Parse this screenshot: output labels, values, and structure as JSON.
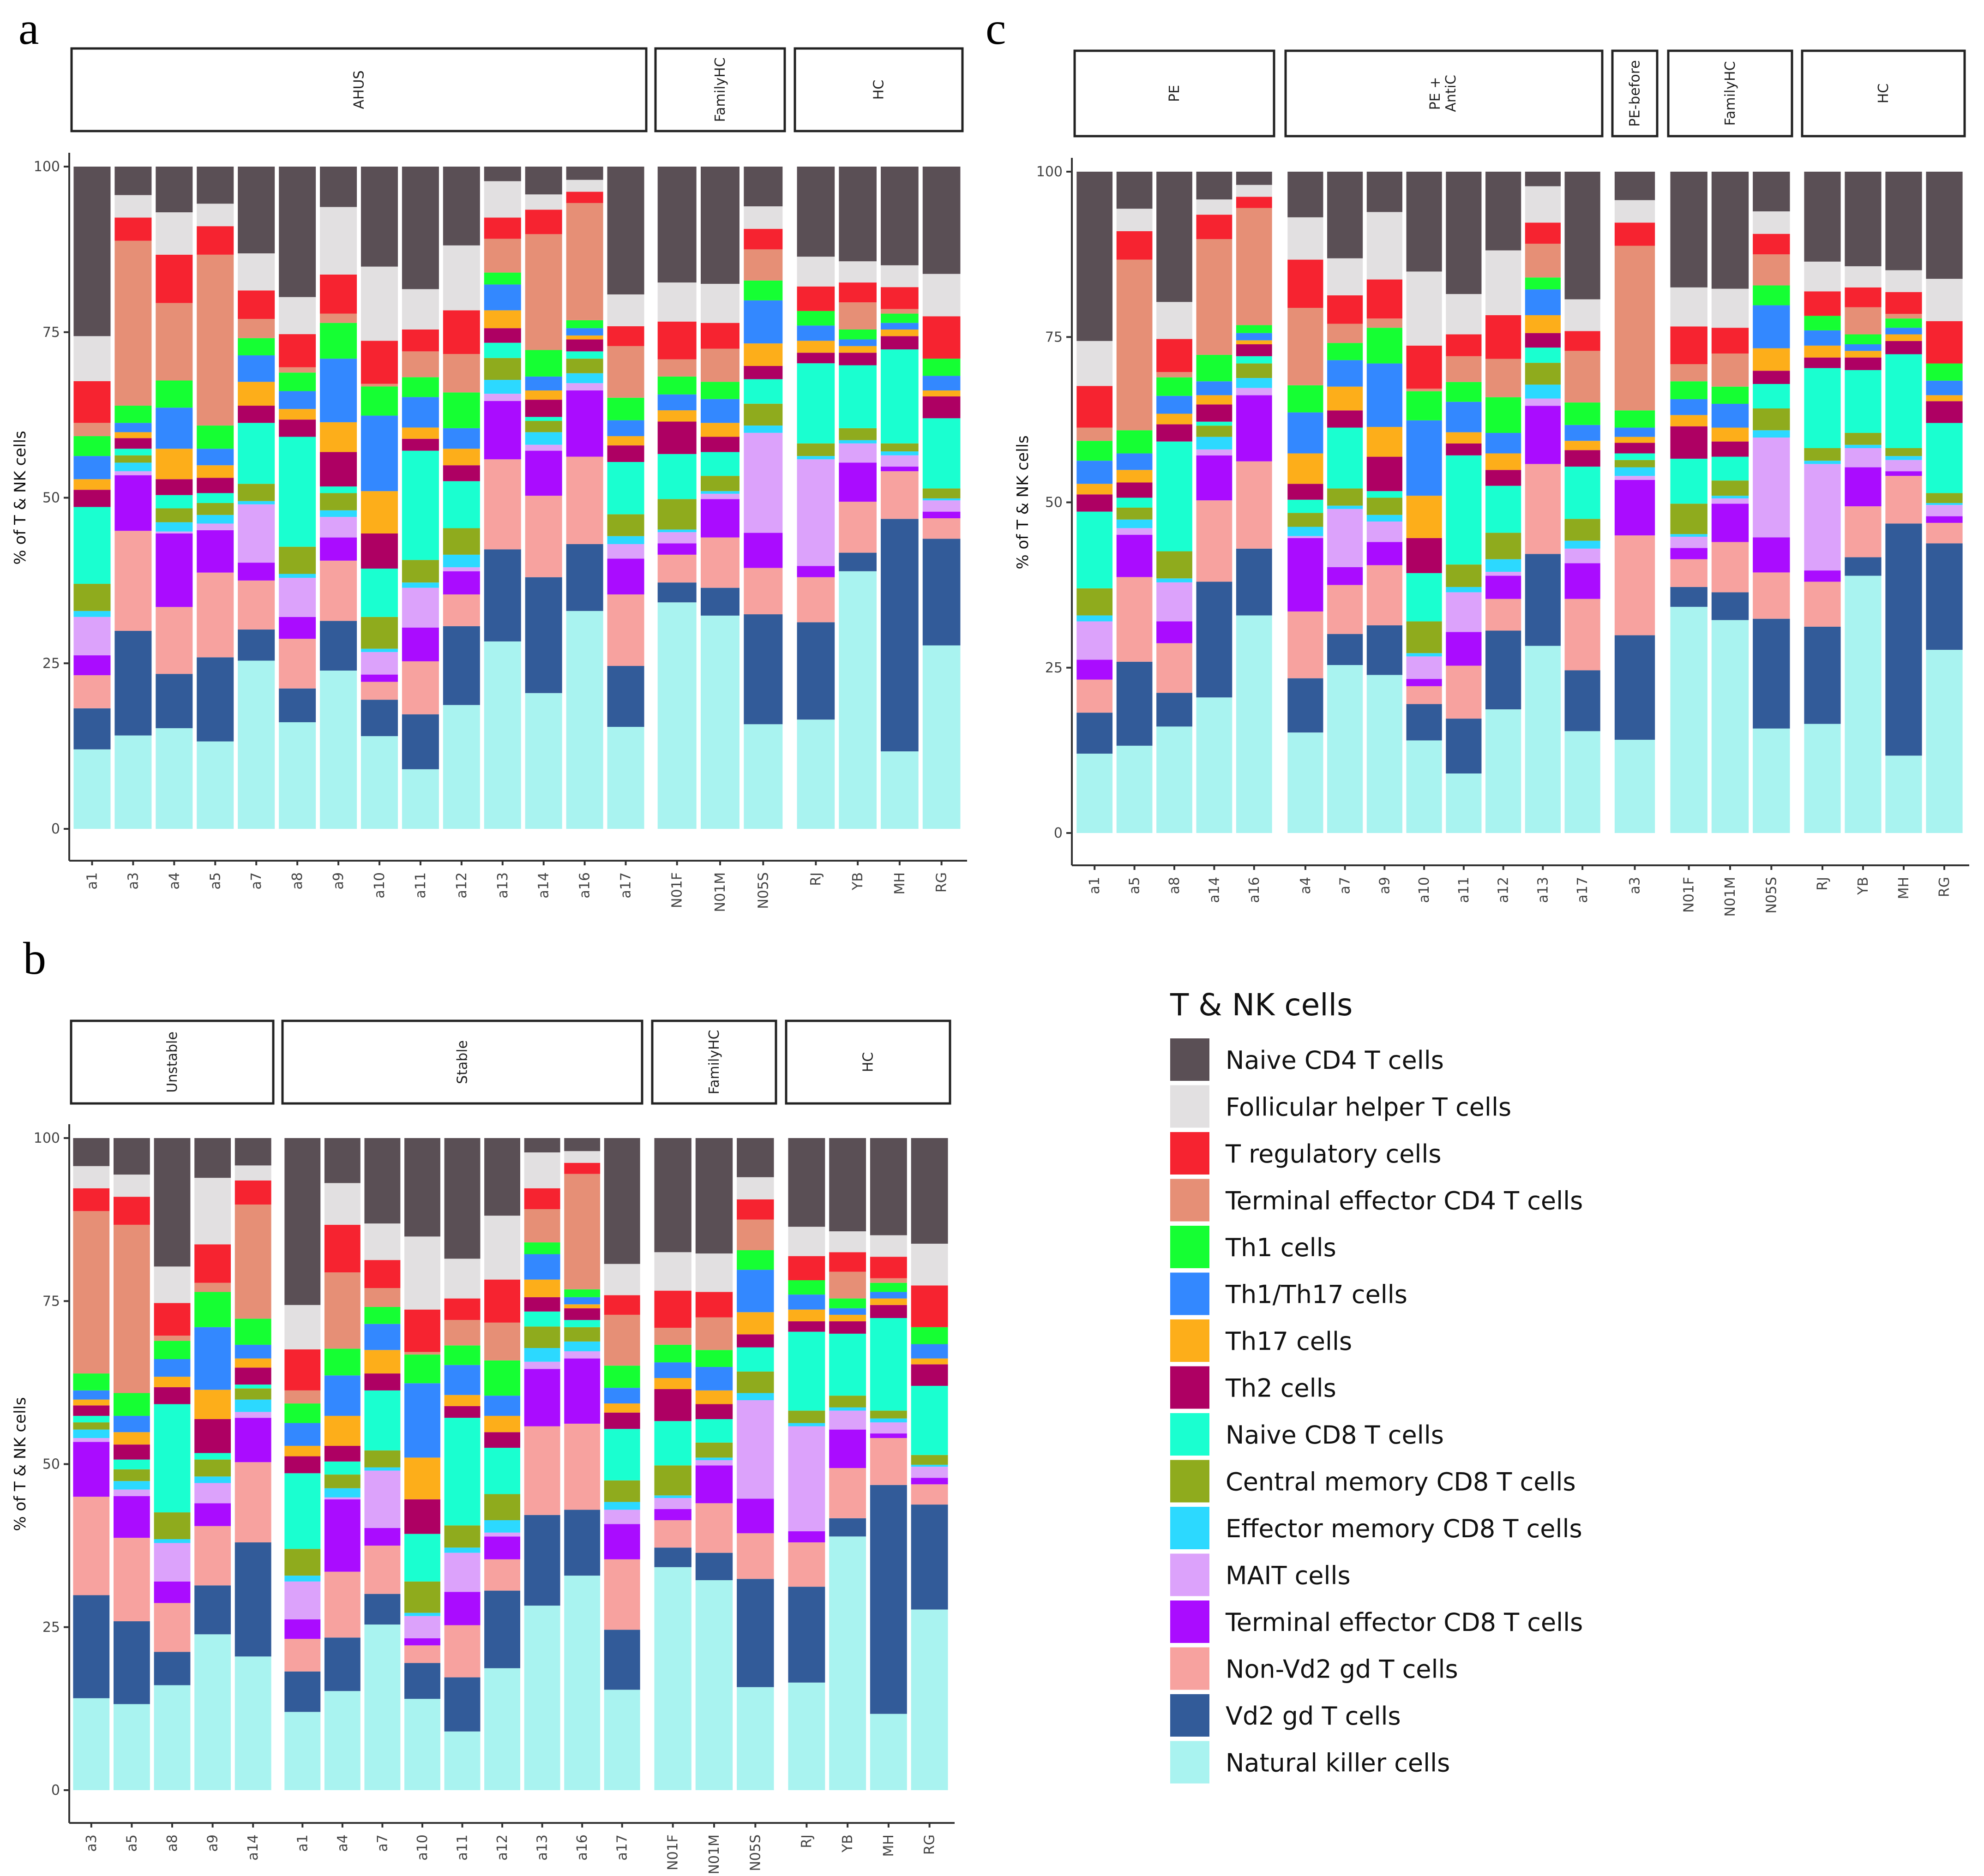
{
  "chart_data": {
    "type": "bar",
    "stacked": true,
    "ylabel": "% of T & NK cells",
    "ylim": [
      0,
      100
    ],
    "yticks": [
      "0",
      "25",
      "50",
      "75",
      "100"
    ],
    "legend": {
      "title": "T & NK cells",
      "placement": "bottom-right",
      "entries": [
        {
          "name": "Naive CD4 T cells",
          "color": "#5a4f55"
        },
        {
          "name": "Follicular helper T cells",
          "color": "#e2e0e1"
        },
        {
          "name": "T regulatory cells",
          "color": "#f62330"
        },
        {
          "name": "Terminal effector CD4 T cells",
          "color": "#e68f76"
        },
        {
          "name": "Th1 cells",
          "color": "#15ff33"
        },
        {
          "name": "Th1/Th17 cells",
          "color": "#3388ff"
        },
        {
          "name": "Th17 cells",
          "color": "#fdae1a"
        },
        {
          "name": "Th2 cells",
          "color": "#ae0063"
        },
        {
          "name": "Naive CD8 T cells",
          "color": "#1affd0"
        },
        {
          "name": "Central memory CD8 T cells",
          "color": "#8fab1d"
        },
        {
          "name": "Effector memory CD8 T cells",
          "color": "#2cd9ff"
        },
        {
          "name": "MAIT cells",
          "color": "#dca2fb"
        },
        {
          "name": "Terminal effector CD8 T cells",
          "color": "#aa0cff"
        },
        {
          "name": "Non-Vd2 gd T cells",
          "color": "#f7a29f"
        },
        {
          "name": "Vd2 gd T cells",
          "color": "#325b99"
        },
        {
          "name": "Natural killer cells",
          "color": "#a9f3f0"
        }
      ]
    },
    "cumulative_note": "Per sample: cumulative stack tops (%) from bottom: Natural killer, Vd2, Non-Vd2, TE CD8, MAIT, EM CD8, CM CD8, Naive CD8, Th2, Th17, Th1/Th17, Th1, TE CD4, Treg, Tfh; Naive CD4 fills to 100",
    "samples": {
      "a1": [
        12.0,
        18.2,
        23.2,
        26.2,
        32.0,
        32.9,
        37.0,
        48.6,
        51.2,
        52.8,
        56.3,
        59.3,
        61.3,
        67.6,
        74.4
      ],
      "a3": [
        14.1,
        29.9,
        45.0,
        53.4,
        54.0,
        55.3,
        56.4,
        57.4,
        59.0,
        59.9,
        61.3,
        63.9,
        88.8,
        92.3,
        95.7
      ],
      "a4": [
        15.2,
        23.4,
        33.5,
        44.6,
        44.9,
        46.3,
        48.4,
        50.4,
        52.8,
        57.4,
        63.6,
        67.7,
        79.4,
        86.7,
        93.1
      ],
      "a5": [
        13.2,
        25.9,
        38.7,
        45.1,
        46.1,
        47.4,
        49.2,
        50.7,
        53.0,
        54.9,
        57.4,
        60.9,
        86.7,
        91.0,
        94.4
      ],
      "a7": [
        25.4,
        30.1,
        37.5,
        40.2,
        49.0,
        49.5,
        52.1,
        61.3,
        63.9,
        67.5,
        71.5,
        74.1,
        77.0,
        81.3,
        86.9
      ],
      "a8": [
        16.1,
        21.2,
        28.7,
        32.0,
        37.9,
        38.5,
        42.6,
        59.2,
        61.8,
        63.4,
        66.1,
        68.9,
        69.7,
        74.7,
        80.3
      ],
      "a9": [
        23.9,
        31.4,
        40.5,
        44.0,
        47.1,
        48.1,
        50.7,
        51.7,
        56.9,
        61.4,
        71.0,
        76.4,
        77.8,
        83.7,
        93.9
      ],
      "a10": [
        14.0,
        19.5,
        22.2,
        23.3,
        26.7,
        27.2,
        32.0,
        39.3,
        44.6,
        51.0,
        62.4,
        66.8,
        67.2,
        73.7,
        84.9
      ],
      "a11": [
        9.0,
        17.3,
        25.3,
        30.4,
        36.4,
        37.2,
        40.6,
        57.1,
        58.9,
        60.6,
        65.2,
        68.2,
        72.1,
        75.4,
        81.5
      ],
      "a12": [
        18.7,
        30.6,
        35.4,
        38.9,
        39.5,
        41.4,
        45.4,
        52.5,
        54.9,
        57.4,
        60.5,
        65.9,
        71.7,
        78.3,
        88.1
      ],
      "a13": [
        28.3,
        42.2,
        55.8,
        64.6,
        65.7,
        67.8,
        71.1,
        73.4,
        75.6,
        78.3,
        82.2,
        84.0,
        89.1,
        92.3,
        97.8
      ],
      "a14": [
        20.5,
        38.0,
        50.3,
        57.1,
        58.0,
        59.9,
        61.6,
        62.2,
        64.8,
        66.2,
        68.3,
        72.3,
        89.8,
        93.5,
        95.8
      ],
      "a16": [
        32.9,
        43.0,
        56.2,
        66.2,
        67.3,
        68.8,
        71.0,
        72.1,
        73.9,
        74.5,
        75.6,
        76.8,
        94.5,
        96.2,
        98.0
      ],
      "a17": [
        15.4,
        24.6,
        35.4,
        40.8,
        43.0,
        44.2,
        47.5,
        55.4,
        57.9,
        59.3,
        61.7,
        65.1,
        72.9,
        75.9,
        80.7
      ],
      "N01F": [
        34.2,
        37.2,
        41.4,
        43.1,
        44.8,
        45.2,
        49.8,
        56.6,
        61.5,
        63.2,
        65.6,
        68.3,
        70.9,
        76.6,
        82.5
      ],
      "N01M": [
        32.2,
        36.4,
        44.0,
        49.8,
        50.6,
        51.0,
        53.3,
        56.9,
        59.2,
        61.3,
        64.9,
        67.5,
        72.5,
        76.4,
        82.3
      ],
      "N05S": [
        15.8,
        32.4,
        39.4,
        44.7,
        59.8,
        60.9,
        64.2,
        67.9,
        69.9,
        73.3,
        79.8,
        82.8,
        87.5,
        90.6,
        94.0
      ],
      "RJ": [
        16.5,
        31.2,
        38.0,
        39.7,
        55.8,
        56.3,
        58.2,
        70.3,
        71.9,
        73.7,
        76.0,
        78.2,
        78.2,
        81.9,
        86.4
      ],
      "YB": [
        38.9,
        41.7,
        49.4,
        55.3,
        58.2,
        58.7,
        60.5,
        70.0,
        71.9,
        72.9,
        73.9,
        75.4,
        79.5,
        82.5,
        85.7
      ],
      "MH": [
        11.7,
        46.8,
        54.0,
        54.7,
        56.4,
        57.0,
        58.2,
        72.4,
        74.4,
        75.4,
        76.4,
        77.8,
        78.5,
        81.8,
        85.1
      ],
      "RG": [
        27.7,
        43.8,
        46.9,
        47.9,
        49.6,
        49.9,
        51.4,
        62.0,
        65.3,
        66.2,
        68.4,
        71.0,
        71.0,
        77.4,
        83.8
      ]
    },
    "panels": [
      {
        "letter": "a",
        "groups": [
          {
            "label": "AHUS",
            "samples": [
              "a1",
              "a3",
              "a4",
              "a5",
              "a7",
              "a8",
              "a9",
              "a10",
              "a11",
              "a12",
              "a13",
              "a14",
              "a16",
              "a17"
            ]
          },
          {
            "label": "FamilyHC",
            "samples": [
              "N01F",
              "N01M",
              "N05S"
            ]
          },
          {
            "label": "HC",
            "samples": [
              "RJ",
              "YB",
              "MH",
              "RG"
            ]
          }
        ]
      },
      {
        "letter": "b",
        "groups": [
          {
            "label": "Unstable",
            "samples": [
              "a3",
              "a5",
              "a8",
              "a9",
              "a14"
            ]
          },
          {
            "label": "Stable",
            "samples": [
              "a1",
              "a4",
              "a7",
              "a10",
              "a11",
              "a12",
              "a13",
              "a16",
              "a17"
            ]
          },
          {
            "label": "FamilyHC",
            "samples": [
              "N01F",
              "N01M",
              "N05S"
            ]
          },
          {
            "label": "HC",
            "samples": [
              "RJ",
              "YB",
              "MH",
              "RG"
            ]
          }
        ]
      },
      {
        "letter": "c",
        "groups": [
          {
            "label": "PE",
            "samples": [
              "a1",
              "a5",
              "a8",
              "a14",
              "a16"
            ]
          },
          {
            "label": "PE +\nAntiC",
            "samples": [
              "a4",
              "a7",
              "a9",
              "a10",
              "a11",
              "a12",
              "a13",
              "a17"
            ]
          },
          {
            "label": "PE-before",
            "samples": [
              "a3"
            ]
          },
          {
            "label": "FamilyHC",
            "samples": [
              "N01F",
              "N01M",
              "N05S"
            ]
          },
          {
            "label": "HC",
            "samples": [
              "RJ",
              "YB",
              "MH",
              "RG"
            ]
          }
        ]
      }
    ]
  }
}
